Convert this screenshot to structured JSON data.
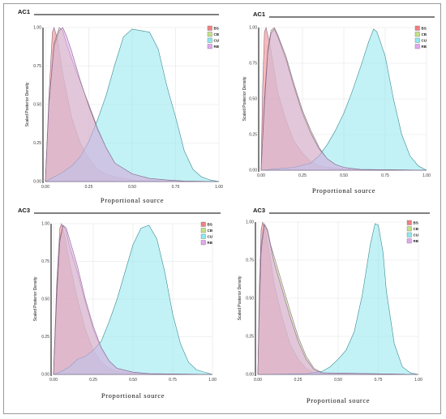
{
  "legend_labels": [
    "BS",
    "CB",
    "CU",
    "RB"
  ],
  "chart_data": [
    {
      "type": "area",
      "title": "AC1",
      "xlabel": "Proportional source",
      "ylabel": "Scaled Posterior Density",
      "xlim": [
        0,
        1
      ],
      "ylim": [
        0,
        1
      ],
      "xticks": [
        "0.00",
        "0.25",
        "0.50",
        "0.75",
        "1.00"
      ],
      "yticks": [
        "0.00",
        "0.25",
        "0.50",
        "0.75",
        "1.00"
      ],
      "legend_position": "top-right",
      "series": [
        {
          "name": "BS",
          "color": "#f08080",
          "x": [
            0,
            0.02,
            0.04,
            0.05,
            0.07,
            0.1,
            0.15,
            0.2,
            0.25,
            0.3,
            0.35,
            0.4,
            0.45,
            0.5,
            0.6,
            0.7,
            0.8,
            1.0
          ],
          "y": [
            0,
            0.55,
            0.97,
            1.0,
            0.92,
            0.7,
            0.42,
            0.25,
            0.15,
            0.08,
            0.05,
            0.03,
            0.02,
            0.01,
            0.005,
            0.003,
            0.001,
            0
          ]
        },
        {
          "name": "CB",
          "color": "#c4e08a",
          "x": [
            0,
            0.02,
            0.05,
            0.08,
            0.1,
            0.12,
            0.15,
            0.2,
            0.25,
            0.3,
            0.35,
            0.4,
            0.5,
            0.6,
            0.7,
            0.8,
            1.0
          ],
          "y": [
            0,
            0.5,
            0.9,
            1.0,
            0.98,
            0.9,
            0.8,
            0.65,
            0.5,
            0.35,
            0.22,
            0.12,
            0.05,
            0.02,
            0.01,
            0.003,
            0
          ]
        },
        {
          "name": "CU",
          "color": "#8fe8ef",
          "x": [
            0,
            0.05,
            0.1,
            0.15,
            0.2,
            0.25,
            0.3,
            0.35,
            0.4,
            0.45,
            0.5,
            0.55,
            0.6,
            0.65,
            0.7,
            0.75,
            0.8,
            0.85,
            0.9,
            0.95,
            1.0
          ],
          "y": [
            0,
            0.03,
            0.06,
            0.1,
            0.16,
            0.26,
            0.4,
            0.56,
            0.76,
            0.94,
            0.99,
            0.98,
            0.97,
            0.86,
            0.62,
            0.42,
            0.2,
            0.08,
            0.03,
            0.01,
            0
          ]
        },
        {
          "name": "RB",
          "color": "#e2a8ee",
          "x": [
            0,
            0.02,
            0.05,
            0.08,
            0.1,
            0.12,
            0.15,
            0.2,
            0.25,
            0.3,
            0.35,
            0.4,
            0.5,
            0.6,
            0.7,
            0.8,
            1.0
          ],
          "y": [
            0,
            0.5,
            0.88,
            0.98,
            1.0,
            0.95,
            0.85,
            0.66,
            0.49,
            0.34,
            0.22,
            0.12,
            0.05,
            0.02,
            0.01,
            0.003,
            0
          ]
        }
      ]
    },
    {
      "type": "area",
      "title": "AC1",
      "xlabel": "Proportional source",
      "ylabel": "Scaled Posterior Density",
      "xlim": [
        0,
        1
      ],
      "ylim": [
        0,
        1
      ],
      "xticks": [
        "0.00",
        "0.25",
        "0.50",
        "0.75",
        "1.00"
      ],
      "yticks": [
        "0.00",
        "0.25",
        "0.50",
        "0.75",
        "1.00"
      ],
      "legend_position": "top-right",
      "series": [
        {
          "name": "BS",
          "color": "#f08080",
          "x": [
            0,
            0.01,
            0.02,
            0.03,
            0.05,
            0.08,
            0.1,
            0.15,
            0.2,
            0.25,
            0.3,
            0.35,
            0.4,
            0.5,
            0.6,
            1.0
          ],
          "y": [
            0,
            0.6,
            0.97,
            1.0,
            0.9,
            0.7,
            0.55,
            0.35,
            0.2,
            0.12,
            0.06,
            0.03,
            0.02,
            0.01,
            0.005,
            0
          ]
        },
        {
          "name": "CB",
          "color": "#c4e08a",
          "x": [
            0,
            0.02,
            0.04,
            0.06,
            0.08,
            0.1,
            0.15,
            0.2,
            0.25,
            0.3,
            0.35,
            0.4,
            0.45,
            0.5,
            0.6,
            1.0
          ],
          "y": [
            0,
            0.5,
            0.85,
            0.98,
            1.0,
            0.95,
            0.8,
            0.6,
            0.42,
            0.28,
            0.16,
            0.08,
            0.04,
            0.02,
            0.005,
            0
          ]
        },
        {
          "name": "CU",
          "color": "#8fe8ef",
          "x": [
            0,
            0.1,
            0.2,
            0.3,
            0.35,
            0.4,
            0.45,
            0.5,
            0.55,
            0.6,
            0.65,
            0.68,
            0.7,
            0.75,
            0.8,
            0.85,
            0.9,
            0.95,
            1.0
          ],
          "y": [
            0,
            0.01,
            0.02,
            0.05,
            0.1,
            0.18,
            0.28,
            0.4,
            0.55,
            0.72,
            0.9,
            0.99,
            0.97,
            0.8,
            0.5,
            0.25,
            0.1,
            0.03,
            0
          ]
        },
        {
          "name": "RB",
          "color": "#e2a8ee",
          "x": [
            0,
            0.02,
            0.04,
            0.06,
            0.08,
            0.1,
            0.15,
            0.2,
            0.25,
            0.3,
            0.35,
            0.4,
            0.45,
            0.5,
            0.6,
            1.0
          ],
          "y": [
            0,
            0.45,
            0.82,
            0.96,
            0.99,
            0.94,
            0.78,
            0.58,
            0.4,
            0.26,
            0.15,
            0.08,
            0.04,
            0.02,
            0.005,
            0
          ]
        }
      ]
    },
    {
      "type": "area",
      "title": "AC3",
      "xlabel": "Proportional source",
      "ylabel": "Scaled Posterior Density",
      "xlim": [
        0,
        1
      ],
      "ylim": [
        0,
        1
      ],
      "xticks": [
        "0.00",
        "0.25",
        "0.50",
        "0.75",
        "1.00"
      ],
      "yticks": [
        "0.00",
        "0.25",
        "0.50",
        "0.75",
        "1.00"
      ],
      "legend_position": "top-right",
      "series": [
        {
          "name": "BS",
          "color": "#f08080",
          "x": [
            0,
            0.02,
            0.04,
            0.05,
            0.07,
            0.1,
            0.15,
            0.2,
            0.25,
            0.3,
            0.35,
            0.4,
            0.5,
            0.6,
            1.0
          ],
          "y": [
            0,
            0.6,
            0.97,
            1.0,
            0.92,
            0.75,
            0.5,
            0.3,
            0.16,
            0.08,
            0.04,
            0.02,
            0.01,
            0.003,
            0
          ]
        },
        {
          "name": "CB",
          "color": "#c4e08a",
          "x": [
            0,
            0.02,
            0.04,
            0.06,
            0.08,
            0.1,
            0.15,
            0.2,
            0.25,
            0.3,
            0.35,
            0.4,
            0.5,
            0.6,
            1.0
          ],
          "y": [
            0,
            0.55,
            0.9,
            0.99,
            0.95,
            0.85,
            0.68,
            0.48,
            0.3,
            0.17,
            0.09,
            0.04,
            0.015,
            0.005,
            0
          ]
        },
        {
          "name": "CU",
          "color": "#8fe8ef",
          "x": [
            0,
            0.05,
            0.1,
            0.15,
            0.2,
            0.25,
            0.3,
            0.35,
            0.4,
            0.45,
            0.5,
            0.55,
            0.6,
            0.65,
            0.7,
            0.75,
            0.8,
            0.85,
            0.9,
            1.0
          ],
          "y": [
            0,
            0.02,
            0.05,
            0.1,
            0.12,
            0.16,
            0.22,
            0.35,
            0.5,
            0.68,
            0.86,
            0.97,
            0.99,
            0.9,
            0.68,
            0.4,
            0.2,
            0.08,
            0.03,
            0
          ]
        },
        {
          "name": "RB",
          "color": "#e2a8ee",
          "x": [
            0,
            0.02,
            0.04,
            0.06,
            0.08,
            0.1,
            0.15,
            0.2,
            0.25,
            0.3,
            0.35,
            0.4,
            0.5,
            0.6,
            1.0
          ],
          "y": [
            0,
            0.5,
            0.88,
            0.99,
            0.97,
            0.9,
            0.72,
            0.5,
            0.32,
            0.18,
            0.09,
            0.04,
            0.015,
            0.005,
            0
          ]
        }
      ]
    },
    {
      "type": "area",
      "title": "AC3",
      "xlabel": "Proportional source",
      "ylabel": "Scaled Posterior Density",
      "xlim": [
        0,
        1
      ],
      "ylim": [
        0,
        1
      ],
      "xticks": [
        "0.00",
        "0.25",
        "0.50",
        "0.75",
        "1.00"
      ],
      "yticks": [
        "0.00",
        "0.25",
        "0.50",
        "0.75",
        "1.00"
      ],
      "legend_position": "top-right",
      "series": [
        {
          "name": "BS",
          "color": "#f08080",
          "x": [
            0,
            0.01,
            0.02,
            0.03,
            0.05,
            0.08,
            0.1,
            0.15,
            0.2,
            0.25,
            0.3,
            0.35,
            1.0
          ],
          "y": [
            0,
            0.6,
            0.95,
            1.0,
            0.92,
            0.75,
            0.6,
            0.38,
            0.2,
            0.1,
            0.04,
            0.01,
            0
          ]
        },
        {
          "name": "CB",
          "color": "#c4e08a",
          "x": [
            0,
            0.01,
            0.02,
            0.04,
            0.06,
            0.08,
            0.1,
            0.15,
            0.2,
            0.25,
            0.3,
            0.35,
            0.4,
            1.0
          ],
          "y": [
            0,
            0.5,
            0.85,
            0.99,
            0.95,
            0.85,
            0.78,
            0.6,
            0.42,
            0.25,
            0.12,
            0.04,
            0.01,
            0
          ]
        },
        {
          "name": "CU",
          "color": "#8fe8ef",
          "x": [
            0,
            0.3,
            0.4,
            0.45,
            0.5,
            0.55,
            0.6,
            0.65,
            0.7,
            0.73,
            0.75,
            0.78,
            0.8,
            0.85,
            0.9,
            0.95,
            1.0
          ],
          "y": [
            0,
            0.005,
            0.02,
            0.05,
            0.1,
            0.16,
            0.28,
            0.52,
            0.85,
            0.99,
            0.98,
            0.8,
            0.55,
            0.2,
            0.05,
            0.01,
            0
          ]
        },
        {
          "name": "RB",
          "color": "#e2a8ee",
          "x": [
            0,
            0.01,
            0.02,
            0.04,
            0.06,
            0.08,
            0.1,
            0.15,
            0.2,
            0.25,
            0.3,
            0.35,
            0.4,
            1.0
          ],
          "y": [
            0,
            0.45,
            0.8,
            0.98,
            0.94,
            0.84,
            0.74,
            0.56,
            0.38,
            0.22,
            0.1,
            0.03,
            0.01,
            0
          ]
        }
      ]
    }
  ]
}
